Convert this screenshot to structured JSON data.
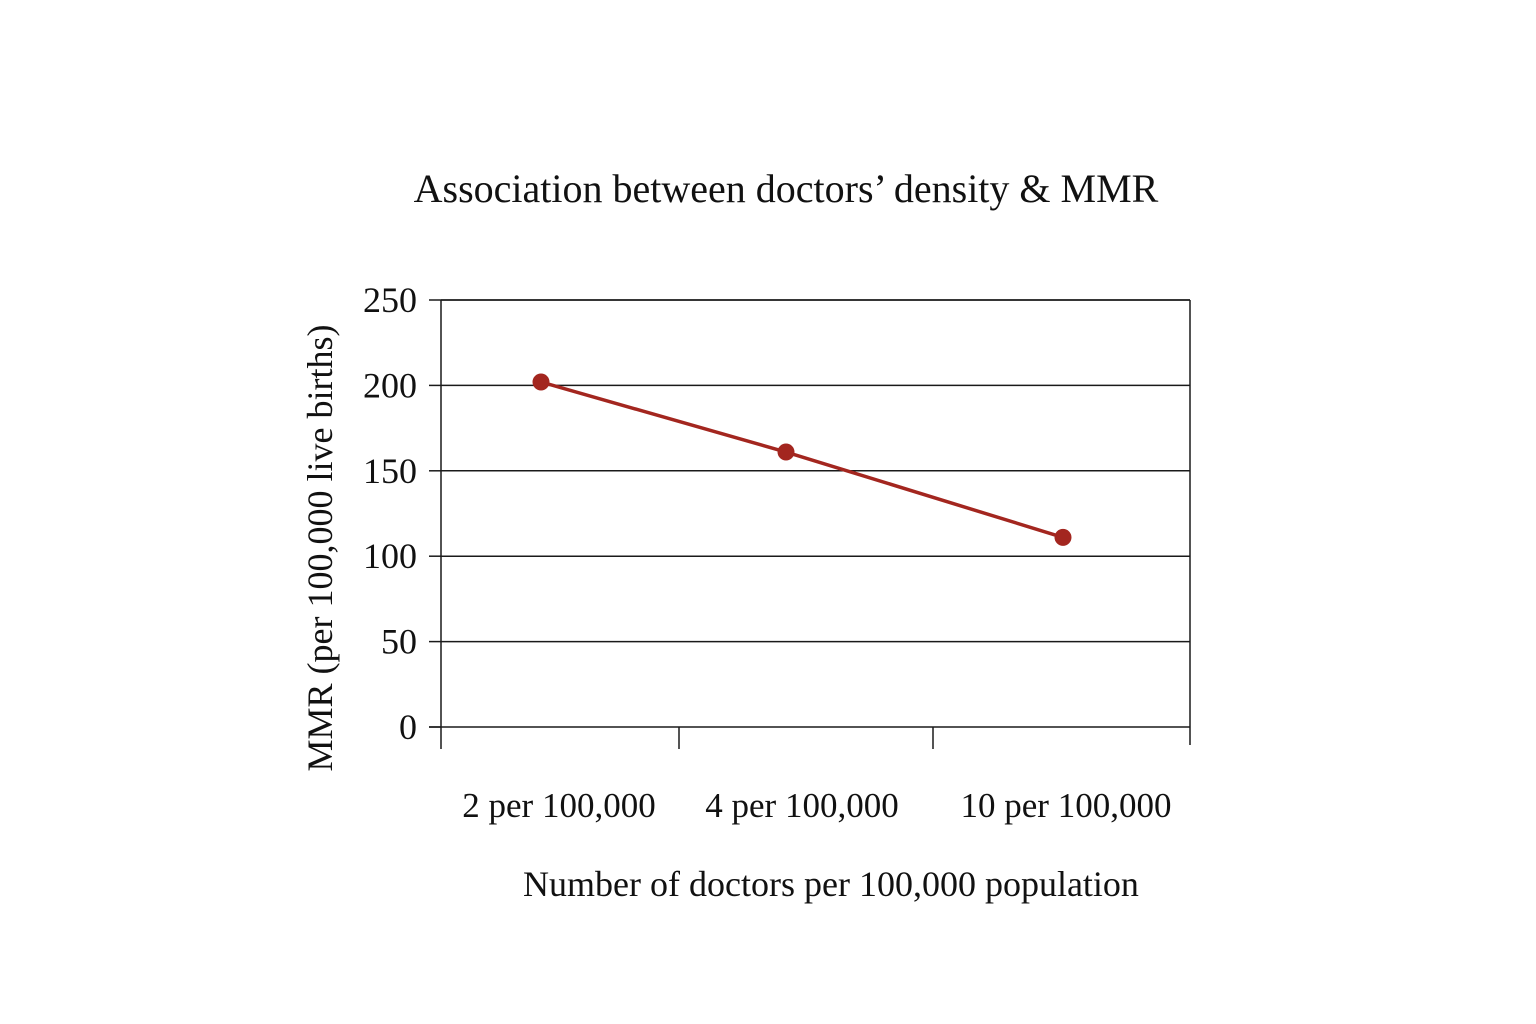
{
  "chart_data": {
    "type": "line",
    "title": "Association between doctors’ density & MMR",
    "xlabel": "Number of doctors per 100,000 population",
    "ylabel": "MMR (per 100,000 live births)",
    "categories": [
      "2 per 100,000",
      "4 per 100,000",
      "10 per 100,000"
    ],
    "series": [
      {
        "name": "MMR",
        "values": [
          202,
          161,
          111
        ]
      }
    ],
    "ylim": [
      0,
      250
    ],
    "yticks": [
      0,
      50,
      100,
      150,
      200,
      250
    ],
    "grid": true,
    "line_color": "#a3261f",
    "axis_color": "#1a1a1a"
  }
}
